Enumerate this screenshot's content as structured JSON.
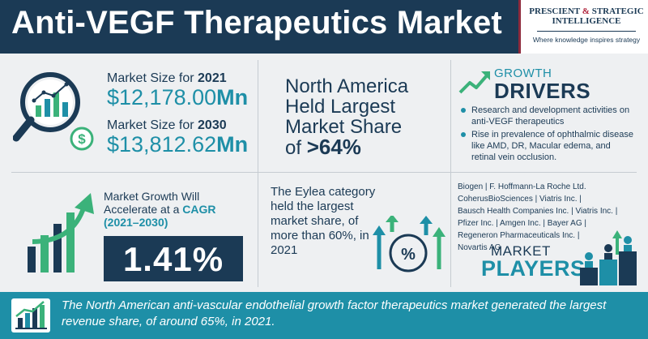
{
  "header": {
    "title": "Anti-VEGF Therapeutics Market",
    "logo_name_1": "PRESCIENT",
    "logo_amp": "&",
    "logo_name_2": "STRATEGIC",
    "logo_name_3": "INTELLIGENCE",
    "logo_tagline": "Where knowledge inspires strategy"
  },
  "market_size": {
    "label_2021_prefix": "Market Size for ",
    "year_2021": "2021",
    "value_2021": "$12,178.00",
    "unit_2021": "Mn",
    "label_2030_prefix": "Market Size for ",
    "year_2030": "2030",
    "value_2030": "$13,812.62",
    "unit_2030": "Mn"
  },
  "north_america": {
    "line1": "North America",
    "line2": "Held Largest",
    "line3": "Market Share",
    "line4_prefix": "of ",
    "share": ">64%"
  },
  "growth_drivers": {
    "title_top": "GROWTH",
    "title_bottom": "DRIVERS",
    "items": [
      "Research and development activities on anti-VEGF therapeutics",
      "Rise in prevalence of ophthalmic disease like AMD, DR, Macular edema, and retinal vein occlusion."
    ]
  },
  "cagr": {
    "line1": "Market Growth Will",
    "line2_prefix": "Accelerate at a ",
    "line2_highlight": "CAGR",
    "line3": "(2021–2030)",
    "value": "1.41%"
  },
  "eylea": {
    "text": "The Eylea category held the largest market share, of more than 60%, in 2021"
  },
  "players": {
    "list_lines": [
      "Biogen | F. Hoffmann-La Roche Ltd.",
      "CoherusBioSciences | Viatris Inc. |",
      "Bausch Health Companies Inc. | Viatris Inc. |",
      "Pfizer Inc. | Amgen Inc. | Bayer AG |",
      "Regeneron Pharmaceuticals Inc. |",
      "Novartis AG"
    ],
    "title_top": "MARKET",
    "title_bottom": "PLAYERS"
  },
  "footer": {
    "text": "The North American anti-vascular endothelial growth factor therapeutics market generated the largest revenue share, of around 65%, in 2021."
  },
  "colors": {
    "navy": "#1b3a55",
    "teal": "#1e8fa7",
    "green": "#3bb27a",
    "background": "#eef0f2"
  },
  "icons": [
    "magnifier-chart-icon",
    "dollar-coin-icon",
    "growth-arrow-icon",
    "rising-bars-icon",
    "percent-circle-icon",
    "podium-people-icon",
    "footer-chart-icon"
  ]
}
